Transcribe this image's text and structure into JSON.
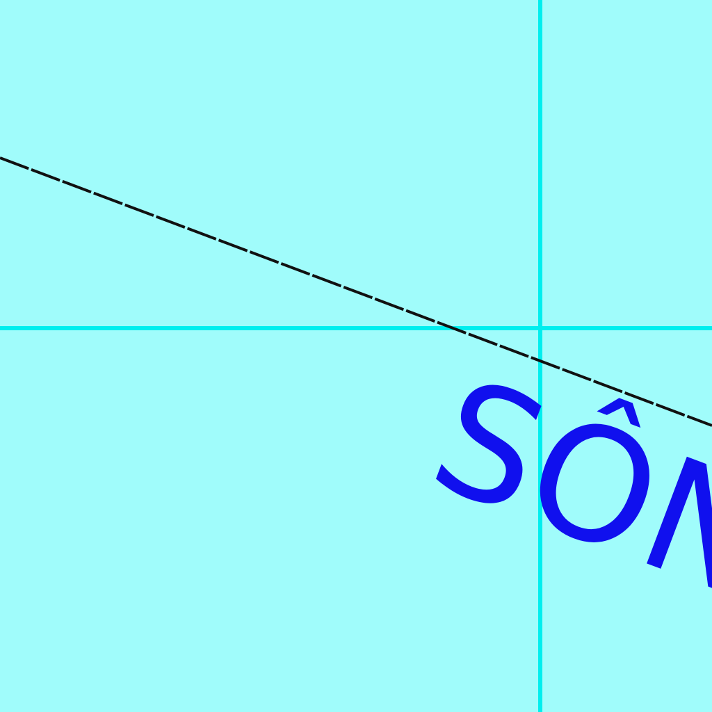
{
  "map": {
    "colors": {
      "water": "#a0fcfb",
      "grid_line": "#00eeee",
      "boundary_line": "#111111",
      "label": "#1010ee"
    },
    "labels": {
      "water_label": "SÔNG"
    }
  }
}
